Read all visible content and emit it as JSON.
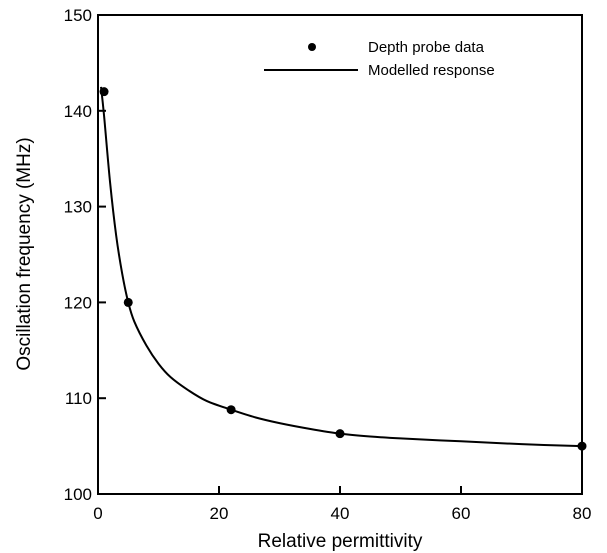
{
  "chart_data": {
    "type": "scatter",
    "title": "",
    "xlabel": "Relative permittivity",
    "ylabel": "Oscillation frequency (MHz)",
    "xlim": [
      0,
      80
    ],
    "ylim": [
      100,
      150
    ],
    "xticks": [
      0,
      20,
      40,
      60,
      80
    ],
    "yticks": [
      100,
      110,
      120,
      130,
      140,
      150
    ],
    "grid": false,
    "legend_position": "top-right",
    "series": [
      {
        "name": "Depth probe data",
        "kind": "points",
        "x": [
          1,
          5,
          22,
          40,
          80
        ],
        "y": [
          142,
          120,
          108.8,
          106.3,
          105
        ]
      },
      {
        "name": "Modelled response",
        "kind": "line",
        "x": [
          0.5,
          1,
          2,
          3,
          4,
          5,
          6,
          8,
          10,
          12,
          15,
          18,
          22,
          26,
          30,
          35,
          40,
          45,
          50,
          60,
          70,
          80
        ],
        "y": [
          142.5,
          139.5,
          132.5,
          127,
          123,
          120,
          118,
          115.5,
          113.6,
          112.2,
          110.8,
          109.7,
          108.8,
          108.0,
          107.4,
          106.8,
          106.3,
          106.0,
          105.8,
          105.5,
          105.2,
          105.0
        ]
      }
    ]
  }
}
